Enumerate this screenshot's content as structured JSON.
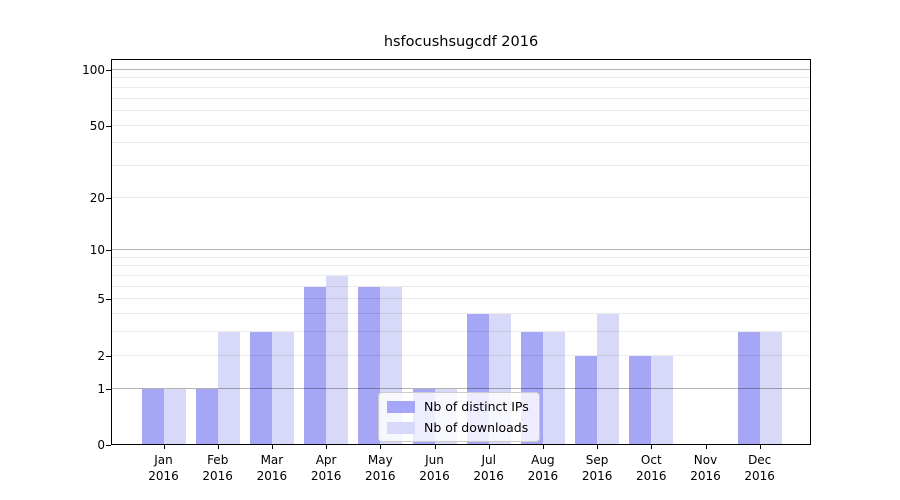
{
  "title": "hsfocushsugcdf 2016",
  "legend": {
    "items": [
      {
        "label": "Nb of distinct IPs",
        "color": "#a6a6f7"
      },
      {
        "label": "Nb of downloads",
        "color": "#d8d8f8"
      }
    ]
  },
  "chart_data": {
    "type": "bar",
    "title": "hsfocushsugcdf 2016",
    "categories": [
      "Jan",
      "Feb",
      "Mar",
      "Apr",
      "May",
      "Jun",
      "Jul",
      "Aug",
      "Sep",
      "Oct",
      "Nov",
      "Dec"
    ],
    "category_year": "2016",
    "series": [
      {
        "name": "Nb of distinct IPs",
        "color": "#a6a6f7",
        "values": [
          1,
          1,
          3,
          6,
          6,
          1,
          4,
          3,
          2,
          2,
          0,
          3
        ]
      },
      {
        "name": "Nb of downloads",
        "color": "#d8d8f8",
        "values": [
          1,
          3,
          3,
          7,
          6,
          1,
          4,
          3,
          4,
          2,
          0,
          3
        ]
      }
    ],
    "xlabel": "",
    "ylabel": "",
    "y_scale": "log1p",
    "ylim": [
      0,
      113
    ],
    "y_ticks": [
      0,
      1,
      2,
      5,
      10,
      20,
      50,
      100
    ],
    "y_major_grid": [
      1,
      10,
      100
    ],
    "y_minor_grid": [
      2,
      3,
      4,
      5,
      6,
      7,
      8,
      9,
      20,
      30,
      40,
      50,
      60,
      70,
      80,
      90
    ],
    "grid": true,
    "legend_position": "lower center-right inside plot"
  }
}
